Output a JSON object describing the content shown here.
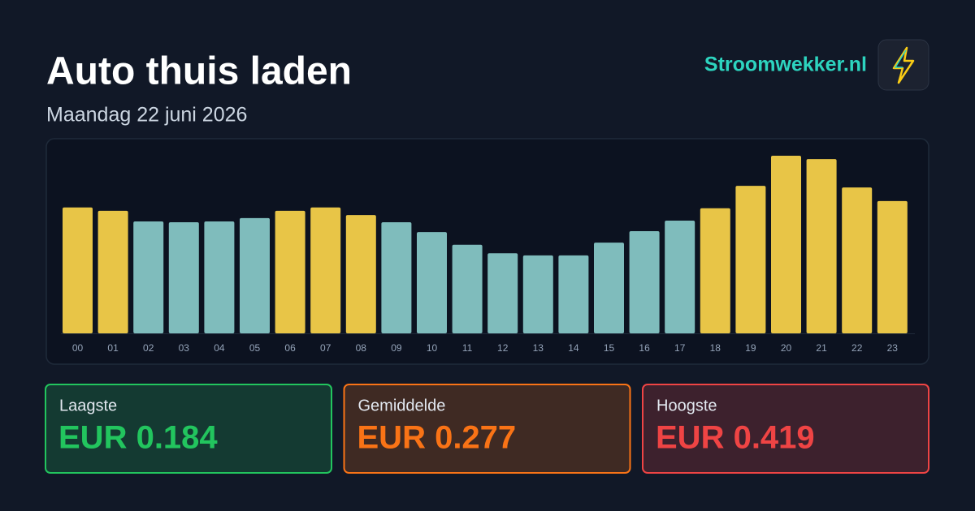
{
  "header": {
    "title": "Auto thuis laden",
    "subtitle": "Maandag 22 juni 2026",
    "brand": "Stroomwekker.nl"
  },
  "chart_data": {
    "type": "bar",
    "categories": [
      "00",
      "01",
      "02",
      "03",
      "04",
      "05",
      "06",
      "07",
      "08",
      "09",
      "10",
      "11",
      "12",
      "13",
      "14",
      "15",
      "16",
      "17",
      "18",
      "19",
      "20",
      "21",
      "22",
      "23"
    ],
    "values": [
      0.297,
      0.289,
      0.264,
      0.262,
      0.264,
      0.272,
      0.289,
      0.297,
      0.279,
      0.262,
      0.239,
      0.209,
      0.189,
      0.184,
      0.184,
      0.214,
      0.241,
      0.266,
      0.295,
      0.348,
      0.419,
      0.411,
      0.344,
      0.312
    ],
    "colors": [
      "#e8c547",
      "#e8c547",
      "#7fbcbc",
      "#7fbcbc",
      "#7fbcbc",
      "#7fbcbc",
      "#e8c547",
      "#e8c547",
      "#e8c547",
      "#7fbcbc",
      "#7fbcbc",
      "#7fbcbc",
      "#7fbcbc",
      "#7fbcbc",
      "#7fbcbc",
      "#7fbcbc",
      "#7fbcbc",
      "#7fbcbc",
      "#e8c547",
      "#e8c547",
      "#e8c547",
      "#e8c547",
      "#e8c547",
      "#e8c547"
    ],
    "ylim": [
      0,
      0.44
    ]
  },
  "stats": [
    {
      "label": "Laagste",
      "value": "EUR 0.184",
      "color": "#22c55e"
    },
    {
      "label": "Gemiddelde",
      "value": "EUR 0.277",
      "color": "#f97316"
    },
    {
      "label": "Hoogste",
      "value": "EUR 0.419",
      "color": "#ef4444"
    }
  ]
}
